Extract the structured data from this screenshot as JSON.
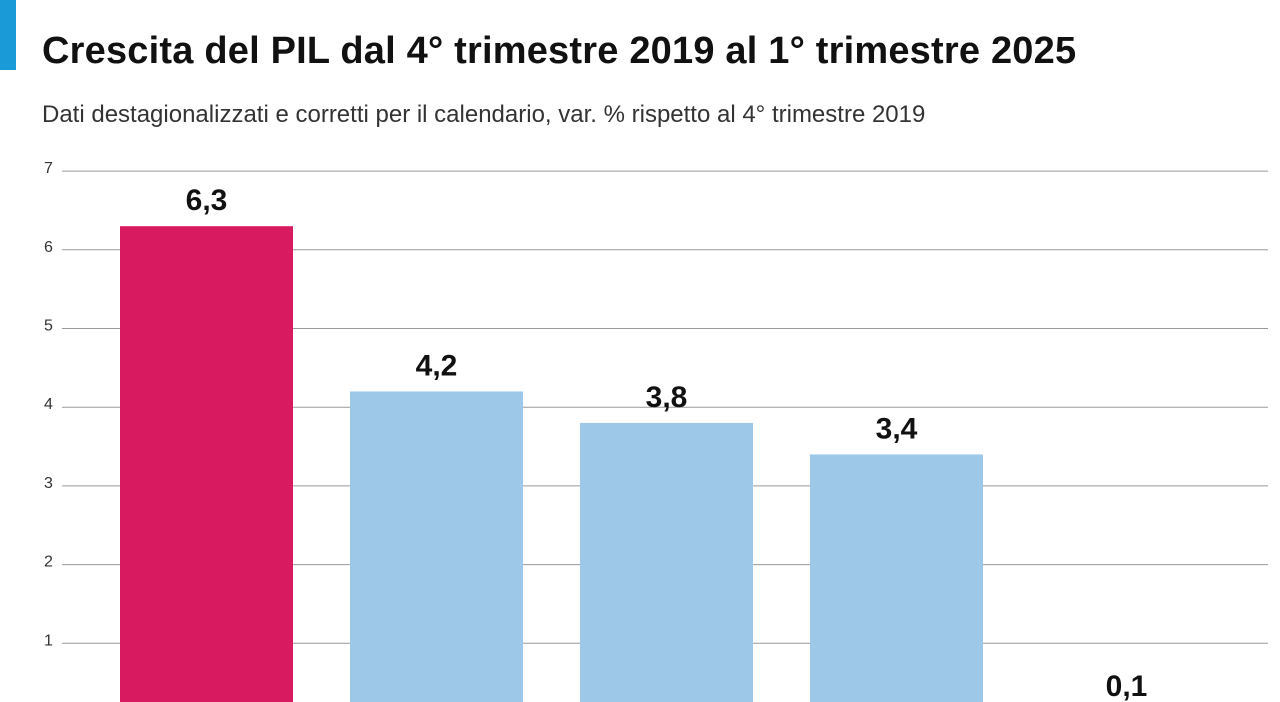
{
  "chart_data": {
    "type": "bar",
    "title": "Crescita del PIL dal 4° trimestre 2019 al 1° trimestre 2025",
    "subtitle": "Dati destagionalizzati e corretti per il calendario, var. % rispetto al 4° trimestre 2019",
    "xlabel": "",
    "ylabel": "",
    "ylim": [
      0,
      7
    ],
    "yticks": [
      1,
      2,
      3,
      4,
      5,
      6,
      7
    ],
    "grid": true,
    "values": [
      6.3,
      4.2,
      3.8,
      3.4,
      0.1
    ],
    "value_labels": [
      "6,3",
      "4,2",
      "3,8",
      "3,4",
      "0,1"
    ],
    "colors": [
      "#d81b60",
      "#9dc8e8",
      "#9dc8e8",
      "#9dc8e8",
      "#9dc8e8"
    ]
  },
  "colors": {
    "accent": "#1a9ad6",
    "highlight": "#d81b60",
    "bar": "#9dc8e8"
  }
}
